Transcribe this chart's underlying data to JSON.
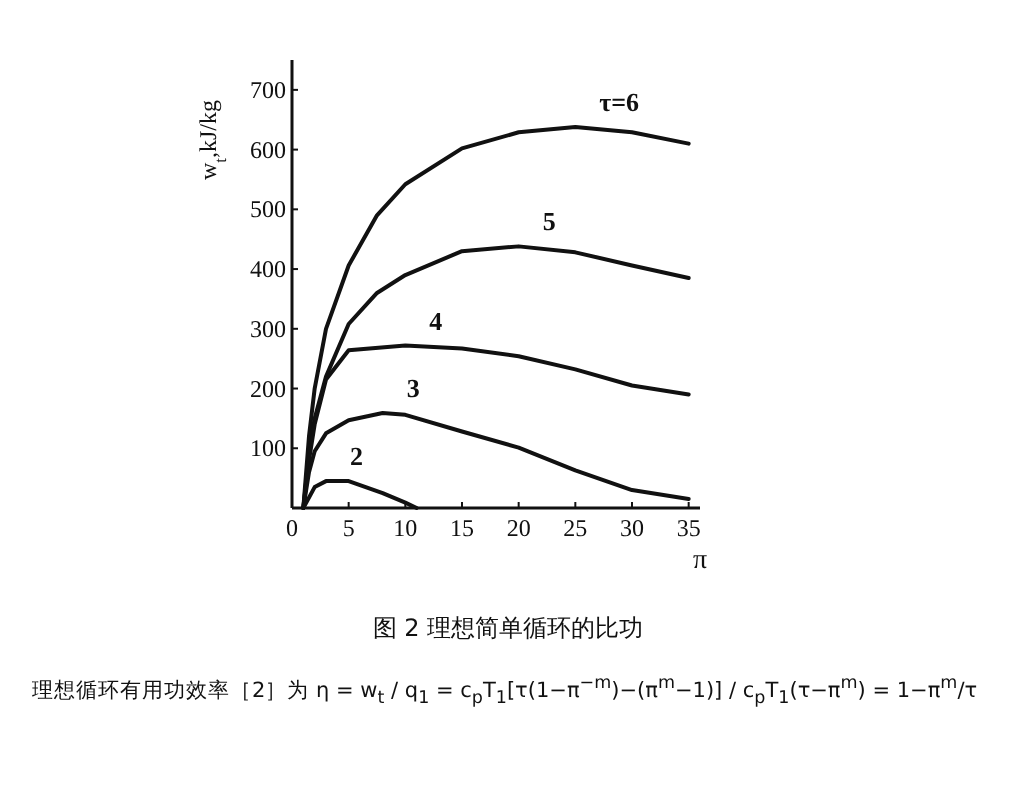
{
  "chart_data": {
    "type": "line",
    "xlabel": "π",
    "ylabel": "w$_{t}$,kJ/kg",
    "xlim": [
      0,
      36
    ],
    "ylim": [
      0,
      750
    ],
    "xticks": [
      0,
      5,
      10,
      15,
      20,
      25,
      30,
      35
    ],
    "yticks": [
      100,
      200,
      300,
      400,
      500,
      600,
      700
    ],
    "grid": false,
    "marker": "none",
    "line_style": "solid",
    "color": "#111111",
    "series": [
      {
        "name": "τ=6",
        "color": "#111111",
        "x": [
          1,
          1.5,
          2,
          3,
          5,
          7.5,
          10,
          15,
          20,
          25,
          30,
          35
        ],
        "values": [
          0,
          120,
          200,
          300,
          406,
          490,
          542,
          602,
          629,
          638,
          629,
          610
        ]
      },
      {
        "name": "5",
        "color": "#111111",
        "x": [
          1,
          1.5,
          2,
          3,
          5,
          7.5,
          10,
          15,
          20,
          25,
          30,
          35
        ],
        "values": [
          0,
          90,
          150,
          220,
          308,
          360,
          390,
          430,
          438,
          428,
          406,
          385
        ]
      },
      {
        "name": "4",
        "color": "#111111",
        "x": [
          1,
          1.5,
          2,
          3,
          5,
          10,
          15,
          20,
          25,
          30,
          35
        ],
        "values": [
          0,
          80,
          140,
          215,
          264,
          272,
          267,
          254,
          232,
          205,
          190
        ]
      },
      {
        "name": "3",
        "color": "#111111",
        "x": [
          1,
          1.5,
          2,
          3,
          5,
          8,
          10,
          15,
          20,
          25,
          30,
          35
        ],
        "values": [
          0,
          60,
          95,
          125,
          147,
          159,
          156,
          128,
          101,
          63,
          30,
          15
        ]
      },
      {
        "name": "2",
        "color": "#111111",
        "x": [
          1,
          2,
          3,
          5,
          8,
          10,
          11
        ],
        "values": [
          0,
          35,
          45,
          45,
          25,
          9,
          0
        ]
      }
    ],
    "annotations": [
      "图 2 理想简单循环的比功",
      "理想循环有用功效率［2］为 η = w$_{t}$ / q$_{1}$ = c$_{p}$T$_{1}$[τ(1−π$^{−m}$)−(π$^{m}$−1)] / c$_{p}$T$_{1}$(τ−π$^{m}$) = 1−π$^{m}$/τ"
    ]
  }
}
